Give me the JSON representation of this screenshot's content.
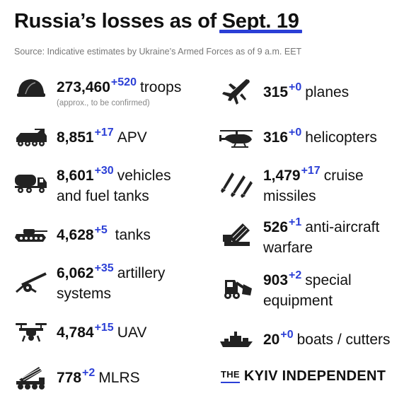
{
  "header": {
    "title_main": "Russia’s losses as of ",
    "title_date": "Sept. 19",
    "source": "Source: Indicative estimates by Ukraine’s Armed Forces as of 9 a.m. EET"
  },
  "items": [
    {
      "icon": "helmet-icon",
      "value": "273,460",
      "delta": "+520",
      "line1": "troops",
      "note": "(approx., to be confirmed)"
    },
    {
      "icon": "apv-icon",
      "value": "8,851",
      "delta": "+17",
      "line1": "APV"
    },
    {
      "icon": "fuel-truck-icon",
      "value": "8,601",
      "delta": "+30",
      "line1": "vehicles",
      "line2": "and fuel tanks"
    },
    {
      "icon": "tank-icon",
      "value": "4,628",
      "delta": "+5",
      "line1": "tanks"
    },
    {
      "icon": "artillery-icon",
      "value": "6,062",
      "delta": "+35",
      "line1": "artillery",
      "line2": "systems"
    },
    {
      "icon": "drone-icon",
      "value": "4,784",
      "delta": "+15",
      "line1": "UAV"
    },
    {
      "icon": "mlrs-icon",
      "value": "778",
      "delta": "+2",
      "line1": "MLRS"
    },
    {
      "icon": "plane-icon",
      "value": "315",
      "delta": "+0",
      "line1": "planes"
    },
    {
      "icon": "helicopter-icon",
      "value": "316",
      "delta": "+0",
      "line1": "helicopters"
    },
    {
      "icon": "missile-icon",
      "value": "1,479",
      "delta": "+17",
      "line1": "cruise",
      "line2": "missiles"
    },
    {
      "icon": "anti-aircraft-icon",
      "value": "526",
      "delta": "+1",
      "line1": "anti-aircraft",
      "line2": "warfare"
    },
    {
      "icon": "loader-icon",
      "value": "903",
      "delta": "+2",
      "line1": "special",
      "line2": "equipment"
    },
    {
      "icon": "boat-icon",
      "value": "20",
      "delta": "+0",
      "line1": "boats / cutters"
    }
  ],
  "brand": {
    "the": "THE",
    "name": "KYIV INDEPENDENT"
  },
  "colors": {
    "accent": "#2b3fd6",
    "text": "#111111",
    "muted": "#777777"
  }
}
